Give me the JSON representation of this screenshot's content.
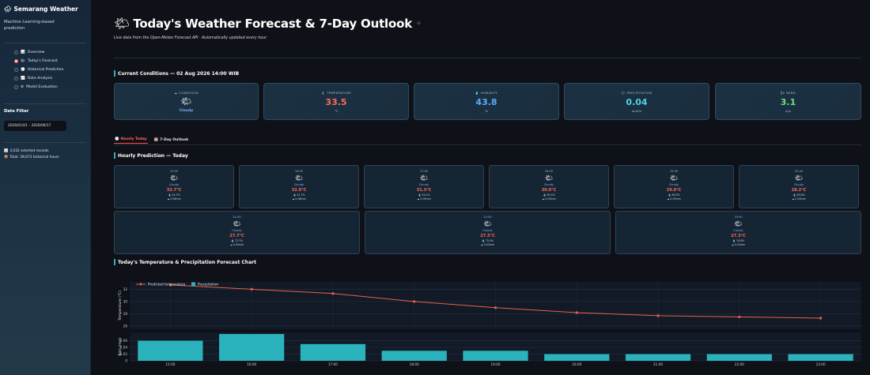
{
  "sidebar": {
    "title": "Semarang Weather",
    "subtitle": "Machine Learning-based prediction",
    "nav": [
      {
        "icon": "📊",
        "label": "Overview",
        "selected": false
      },
      {
        "icon": "🌤",
        "label": "Today's Forecast",
        "selected": true
      },
      {
        "icon": "🕘",
        "label": "Historical Prediction",
        "selected": false
      },
      {
        "icon": "📈",
        "label": "Data Analysis",
        "selected": false
      },
      {
        "icon": "⚙",
        "label": "Model Evaluation",
        "selected": false
      }
    ],
    "filter_title": "Date Filter",
    "date_range": "2026/01/01 – 2026/06/17",
    "stat_selected": "4,032 selected records",
    "stat_total": "Total: 39,073 historical hours"
  },
  "header": {
    "title": "Today's Weather Forecast & 7-Day Outlook",
    "subtitle": "Live data from the Open-Meteo Forecast API · Automatically updated every hour"
  },
  "current": {
    "section_title": "Current Conditions — 02 Aug 2026 14:00 WIB",
    "condition_label": "CONDITION",
    "condition_value": "Cloudy",
    "temperature_label": "TEMPERATURE",
    "temperature_value": "33.5",
    "temperature_unit": "°C",
    "humidity_label": "HUMIDITY",
    "humidity_value": "43.8",
    "humidity_unit": "%",
    "precip_label": "PRECIPITATION",
    "precip_value": "0.04",
    "precip_unit": "mm/hr",
    "wind_label": "WIND",
    "wind_value": "3.1",
    "wind_unit": "m/s"
  },
  "tabs": [
    {
      "icon": "🕒",
      "label": "Hourly Today",
      "active": true
    },
    {
      "icon": "📅",
      "label": "7-Day Outlook",
      "active": false
    }
  ],
  "hourly": {
    "section_title": "Hourly Prediction — Today",
    "items": [
      {
        "time": "15:00",
        "cond": "Cloudy",
        "temp": "32.7°C",
        "hum": "💧 44.7%",
        "rain": "☁ 0.06mm"
      },
      {
        "time": "16:00",
        "cond": "Cloudy",
        "temp": "32.0°C",
        "hum": "💧 47.7%",
        "rain": "☁ 0.08mm"
      },
      {
        "time": "17:00",
        "cond": "Cloudy",
        "temp": "31.3°C",
        "hum": "💧 54.1%",
        "rain": "☁ 0.05mm"
      },
      {
        "time": "18:00",
        "cond": "Cloudy",
        "temp": "30.0°C",
        "hum": "💧 60.2%",
        "rain": "☁ 0.03mm"
      },
      {
        "time": "19:00",
        "cond": "Cloudy",
        "temp": "29.0°C",
        "hum": "💧 66.0%",
        "rain": "☁ 0.03mm"
      },
      {
        "time": "20:00",
        "cond": "Cloudy",
        "temp": "28.2°C",
        "hum": "💧 69.6%",
        "rain": "☁ 0.02mm"
      },
      {
        "time": "21:00",
        "cond": "Cloudy",
        "temp": "27.7°C",
        "hum": "💧 72.7%",
        "rain": "☁ 0.02mm"
      },
      {
        "time": "22:00",
        "cond": "Cloudy",
        "temp": "27.5°C",
        "hum": "💧 75.4%",
        "rain": "☁ 0.02mm"
      },
      {
        "time": "23:00",
        "cond": "Cloudy",
        "temp": "27.3°C",
        "hum": "💧 76.8%",
        "rain": "☁ 0.02mm"
      }
    ]
  },
  "chart_section_title": "Today's Temperature & Precipitation Forecast Chart",
  "colors": {
    "temperature": "#ff6b57",
    "humidity": "#5fa8ff",
    "precipitation": "#4fd1e0",
    "wind": "#6ee07a",
    "bars": "#2bb3bd",
    "line": "#e8624d"
  },
  "chart_data": {
    "type": "line+bar",
    "categories": [
      "15:00",
      "16:00",
      "17:00",
      "18:00",
      "19:00",
      "20:00",
      "21:00",
      "22:00",
      "23:00"
    ],
    "series": [
      {
        "name": "Predicted temperature",
        "type": "line",
        "values": [
          32.7,
          32.0,
          31.3,
          30.0,
          29.0,
          28.2,
          27.7,
          27.5,
          27.3
        ]
      },
      {
        "name": "Precipitation",
        "type": "bar",
        "values": [
          0.06,
          0.08,
          0.05,
          0.03,
          0.03,
          0.02,
          0.02,
          0.02,
          0.02
        ]
      }
    ],
    "top_ylabel": "Temperature (°C)",
    "top_yticks": [
      26,
      28,
      30,
      32
    ],
    "top_ylim": [
      25.5,
      33.2
    ],
    "bottom_ylabel": "Rain (mm)",
    "bottom_yticks": [
      0,
      0.02,
      0.04,
      0.06
    ],
    "bottom_ylim": [
      0,
      0.085
    ],
    "legend": "top-left",
    "grid": true
  }
}
